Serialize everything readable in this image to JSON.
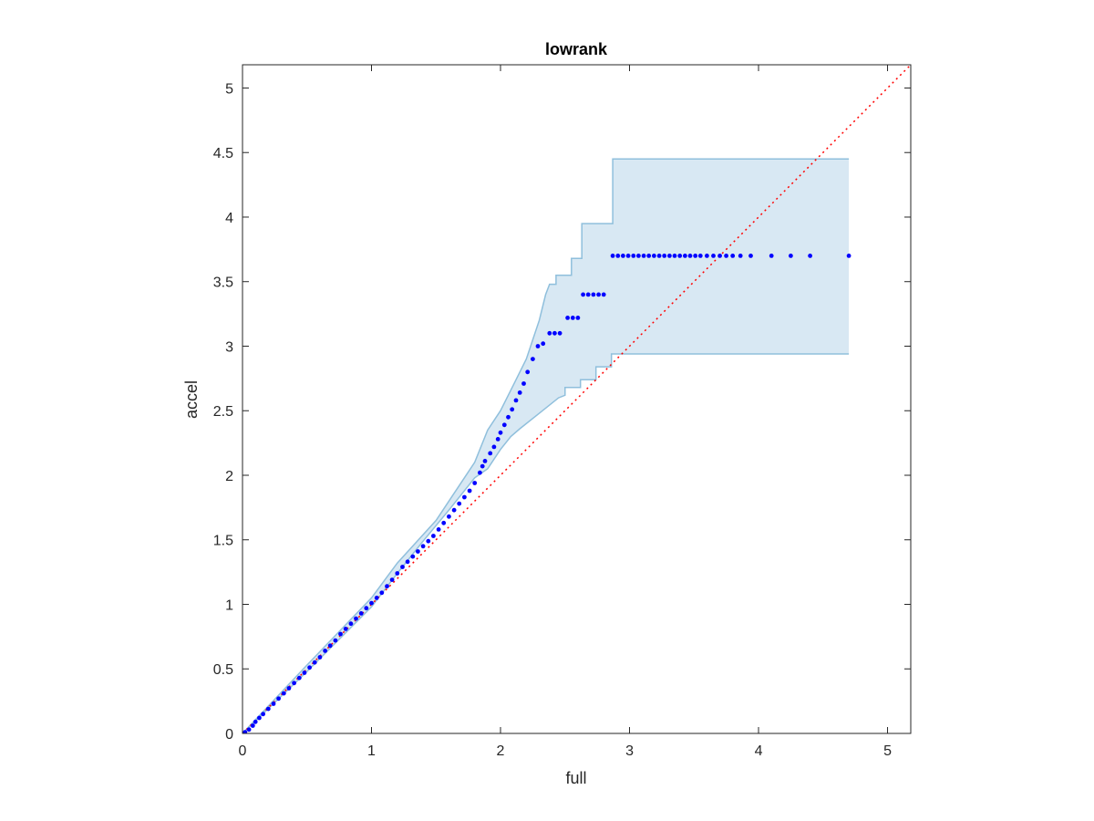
{
  "chart_data": {
    "type": "scatter",
    "title": "lowrank",
    "xlabel": "full",
    "ylabel": "accel",
    "xlim": [
      0,
      5.18
    ],
    "ylim": [
      0,
      5.18
    ],
    "xticks": [
      0,
      1,
      2,
      3,
      4,
      5
    ],
    "yticks": [
      0,
      0.5,
      1,
      1.5,
      2,
      2.5,
      3,
      3.5,
      4,
      4.5,
      5
    ],
    "xtick_labels": [
      "0",
      "1",
      "2",
      "3",
      "4",
      "5"
    ],
    "ytick_labels": [
      "0",
      "0.5",
      "1",
      "1.5",
      "2",
      "2.5",
      "3",
      "3.5",
      "4",
      "4.5",
      "5"
    ],
    "grid": false,
    "box": true,
    "reference_line": {
      "style": "dotted",
      "color": "#ff0000",
      "from": [
        0,
        0
      ],
      "to": [
        5.18,
        5.18
      ]
    },
    "band": {
      "fill": "#d8e8f3",
      "edge": "#8fbfdc",
      "upper": [
        [
          0,
          0
        ],
        [
          0.5,
          0.53
        ],
        [
          1.0,
          1.05
        ],
        [
          1.2,
          1.32
        ],
        [
          1.5,
          1.65
        ],
        [
          1.6,
          1.8
        ],
        [
          1.8,
          2.1
        ],
        [
          1.9,
          2.35
        ],
        [
          2.0,
          2.5
        ],
        [
          2.1,
          2.7
        ],
        [
          2.2,
          2.9
        ],
        [
          2.25,
          3.05
        ],
        [
          2.3,
          3.2
        ],
        [
          2.35,
          3.4
        ],
        [
          2.38,
          3.48
        ],
        [
          2.43,
          3.48
        ],
        [
          2.43,
          3.55
        ],
        [
          2.55,
          3.55
        ],
        [
          2.55,
          3.68
        ],
        [
          2.63,
          3.68
        ],
        [
          2.63,
          3.95
        ],
        [
          2.87,
          3.95
        ],
        [
          2.87,
          4.45
        ],
        [
          4.7,
          4.45
        ]
      ],
      "lower": [
        [
          4.7,
          2.94
        ],
        [
          2.86,
          2.94
        ],
        [
          2.86,
          2.84
        ],
        [
          2.74,
          2.84
        ],
        [
          2.74,
          2.74
        ],
        [
          2.62,
          2.74
        ],
        [
          2.62,
          2.68
        ],
        [
          2.5,
          2.68
        ],
        [
          2.5,
          2.62
        ],
        [
          2.45,
          2.6
        ],
        [
          2.3,
          2.48
        ],
        [
          2.15,
          2.36
        ],
        [
          2.08,
          2.3
        ],
        [
          2.0,
          2.2
        ],
        [
          1.9,
          2.05
        ],
        [
          1.8,
          1.98
        ],
        [
          1.6,
          1.73
        ],
        [
          1.4,
          1.49
        ],
        [
          1.2,
          1.24
        ],
        [
          1.0,
          0.98
        ],
        [
          0.5,
          0.48
        ],
        [
          0,
          0
        ]
      ]
    },
    "series": [
      {
        "marker": "point",
        "color": "#0000ff",
        "points": [
          [
            0.02,
            0.01
          ],
          [
            0.05,
            0.03
          ],
          [
            0.08,
            0.06
          ],
          [
            0.1,
            0.09
          ],
          [
            0.13,
            0.12
          ],
          [
            0.16,
            0.15
          ],
          [
            0.2,
            0.19
          ],
          [
            0.24,
            0.23
          ],
          [
            0.28,
            0.27
          ],
          [
            0.32,
            0.31
          ],
          [
            0.36,
            0.35
          ],
          [
            0.4,
            0.39
          ],
          [
            0.44,
            0.43
          ],
          [
            0.48,
            0.47
          ],
          [
            0.52,
            0.51
          ],
          [
            0.56,
            0.55
          ],
          [
            0.6,
            0.59
          ],
          [
            0.64,
            0.64
          ],
          [
            0.68,
            0.68
          ],
          [
            0.72,
            0.72
          ],
          [
            0.76,
            0.77
          ],
          [
            0.8,
            0.81
          ],
          [
            0.84,
            0.85
          ],
          [
            0.88,
            0.89
          ],
          [
            0.92,
            0.93
          ],
          [
            0.96,
            0.97
          ],
          [
            1.0,
            1.01
          ],
          [
            1.04,
            1.05
          ],
          [
            1.08,
            1.09
          ],
          [
            1.12,
            1.14
          ],
          [
            1.16,
            1.19
          ],
          [
            1.2,
            1.24
          ],
          [
            1.24,
            1.29
          ],
          [
            1.28,
            1.33
          ],
          [
            1.32,
            1.37
          ],
          [
            1.36,
            1.41
          ],
          [
            1.4,
            1.45
          ],
          [
            1.44,
            1.49
          ],
          [
            1.48,
            1.53
          ],
          [
            1.52,
            1.58
          ],
          [
            1.56,
            1.63
          ],
          [
            1.6,
            1.68
          ],
          [
            1.64,
            1.73
          ],
          [
            1.68,
            1.78
          ],
          [
            1.72,
            1.83
          ],
          [
            1.76,
            1.88
          ],
          [
            1.8,
            1.94
          ],
          [
            1.84,
            2.02
          ],
          [
            1.86,
            2.07
          ],
          [
            1.88,
            2.11
          ],
          [
            1.92,
            2.17
          ],
          [
            1.95,
            2.22
          ],
          [
            1.98,
            2.28
          ],
          [
            2.0,
            2.33
          ],
          [
            2.03,
            2.39
          ],
          [
            2.06,
            2.45
          ],
          [
            2.09,
            2.51
          ],
          [
            2.12,
            2.58
          ],
          [
            2.15,
            2.64
          ],
          [
            2.18,
            2.71
          ],
          [
            2.21,
            2.8
          ],
          [
            2.25,
            2.9
          ],
          [
            2.29,
            3.0
          ],
          [
            2.33,
            3.02
          ],
          [
            2.38,
            3.1
          ],
          [
            2.42,
            3.1
          ],
          [
            2.46,
            3.1
          ],
          [
            2.52,
            3.22
          ],
          [
            2.56,
            3.22
          ],
          [
            2.6,
            3.22
          ],
          [
            2.64,
            3.4
          ],
          [
            2.68,
            3.4
          ],
          [
            2.72,
            3.4
          ],
          [
            2.76,
            3.4
          ],
          [
            2.8,
            3.4
          ],
          [
            2.87,
            3.7
          ],
          [
            2.91,
            3.7
          ],
          [
            2.95,
            3.7
          ],
          [
            2.99,
            3.7
          ],
          [
            3.03,
            3.7
          ],
          [
            3.07,
            3.7
          ],
          [
            3.11,
            3.7
          ],
          [
            3.15,
            3.7
          ],
          [
            3.19,
            3.7
          ],
          [
            3.23,
            3.7
          ],
          [
            3.27,
            3.7
          ],
          [
            3.31,
            3.7
          ],
          [
            3.35,
            3.7
          ],
          [
            3.39,
            3.7
          ],
          [
            3.43,
            3.7
          ],
          [
            3.47,
            3.7
          ],
          [
            3.51,
            3.7
          ],
          [
            3.55,
            3.7
          ],
          [
            3.6,
            3.7
          ],
          [
            3.65,
            3.7
          ],
          [
            3.7,
            3.7
          ],
          [
            3.75,
            3.7
          ],
          [
            3.8,
            3.7
          ],
          [
            3.86,
            3.7
          ],
          [
            3.94,
            3.7
          ],
          [
            4.1,
            3.7
          ],
          [
            4.25,
            3.7
          ],
          [
            4.4,
            3.7
          ],
          [
            4.7,
            3.7
          ]
        ]
      }
    ]
  }
}
